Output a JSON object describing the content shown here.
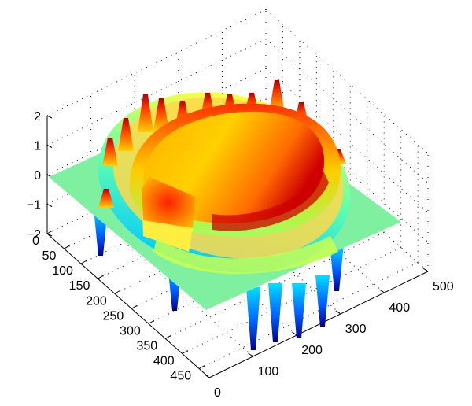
{
  "chart_data": {
    "type": "surface",
    "title": "",
    "xlabel": "",
    "ylabel": "",
    "zlabel": "",
    "xlim": [
      0,
      500
    ],
    "ylim": [
      0,
      480
    ],
    "zlim": [
      -2,
      2
    ],
    "x_ticks": [
      "0",
      "100",
      "200",
      "300",
      "400",
      "500"
    ],
    "y_ticks": [
      "0",
      "50",
      "100",
      "150",
      "200",
      "250",
      "300",
      "350",
      "400",
      "450"
    ],
    "z_ticks": [
      "2",
      "1",
      "0",
      "−1",
      "−2"
    ],
    "grid": true,
    "colormap": "jet",
    "colors": [
      "#00007f",
      "#0000ff",
      "#007fff",
      "#00ffff",
      "#7fff7f",
      "#ffff00",
      "#ff7f00",
      "#ff0000",
      "#7f0000"
    ],
    "base_plane_color": "#7ff0a0",
    "surface": {
      "description_values": {
        "base_level": 0,
        "ring_ridge_peaks_max": 1.8,
        "bowl_rim_max": 1.6,
        "bottom_spikes_min": -1.9
      }
    }
  }
}
